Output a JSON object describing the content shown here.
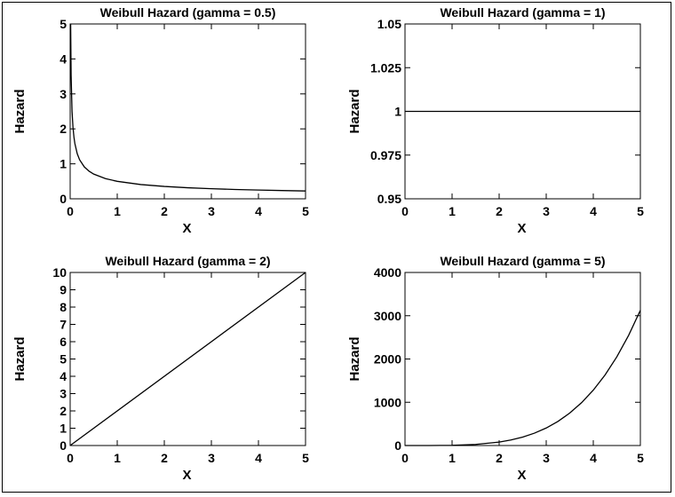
{
  "chart_data": [
    {
      "type": "line",
      "title": "Weibull Hazard (gamma = 0.5)",
      "xlabel": "X",
      "ylabel": "Hazard",
      "xlim": [
        0,
        5
      ],
      "ylim": [
        0,
        5
      ],
      "xticks": [
        "0",
        "1",
        "2",
        "3",
        "4",
        "5"
      ],
      "yticks": [
        "0",
        "1",
        "2",
        "3",
        "4",
        "5"
      ],
      "series": [
        {
          "x": [
            0.01,
            0.02,
            0.04,
            0.06,
            0.08,
            0.1,
            0.15,
            0.2,
            0.3,
            0.4,
            0.5,
            0.75,
            1,
            1.5,
            2,
            2.5,
            3,
            3.5,
            4,
            4.5,
            5
          ],
          "y": [
            5.0,
            3.536,
            2.5,
            2.041,
            1.768,
            1.581,
            1.291,
            1.118,
            0.913,
            0.791,
            0.707,
            0.577,
            0.5,
            0.408,
            0.354,
            0.316,
            0.289,
            0.267,
            0.25,
            0.236,
            0.224
          ]
        }
      ],
      "grid": false
    },
    {
      "type": "line",
      "title": "Weibull Hazard (gamma = 1)",
      "xlabel": "X",
      "ylabel": "Hazard",
      "xlim": [
        0,
        5
      ],
      "ylim": [
        0.95,
        1.05
      ],
      "xticks": [
        "0",
        "1",
        "2",
        "3",
        "4",
        "5"
      ],
      "yticks": [
        "0.95",
        "0.975",
        "1",
        "1.025",
        "1.05"
      ],
      "series": [
        {
          "x": [
            0,
            5
          ],
          "y": [
            1,
            1
          ]
        }
      ],
      "grid": false
    },
    {
      "type": "line",
      "title": "Weibull Hazard (gamma = 2)",
      "xlabel": "X",
      "ylabel": "Hazard",
      "xlim": [
        0,
        5
      ],
      "ylim": [
        0,
        10
      ],
      "xticks": [
        "0",
        "1",
        "2",
        "3",
        "4",
        "5"
      ],
      "yticks": [
        "0",
        "1",
        "2",
        "3",
        "4",
        "5",
        "6",
        "7",
        "8",
        "9",
        "10"
      ],
      "series": [
        {
          "x": [
            0,
            5
          ],
          "y": [
            0,
            10
          ]
        }
      ],
      "grid": false
    },
    {
      "type": "line",
      "title": "Weibull Hazard (gamma = 5)",
      "xlabel": "X",
      "ylabel": "Hazard",
      "xlim": [
        0,
        5
      ],
      "ylim": [
        0,
        4000
      ],
      "xticks": [
        "0",
        "1",
        "2",
        "3",
        "4",
        "5"
      ],
      "yticks": [
        "0",
        "1000",
        "2000",
        "3000",
        "4000"
      ],
      "series": [
        {
          "x": [
            0,
            0.5,
            1,
            1.5,
            2,
            2.25,
            2.5,
            2.75,
            3,
            3.25,
            3.5,
            3.75,
            4,
            4.25,
            4.5,
            4.75,
            5
          ],
          "y": [
            0,
            0.3,
            5,
            25.3,
            80,
            128.1,
            195.3,
            285.9,
            405,
            557.8,
            750.3,
            988.8,
            1280,
            1631,
            2050,
            2545,
            3125
          ]
        }
      ],
      "grid": false
    }
  ]
}
